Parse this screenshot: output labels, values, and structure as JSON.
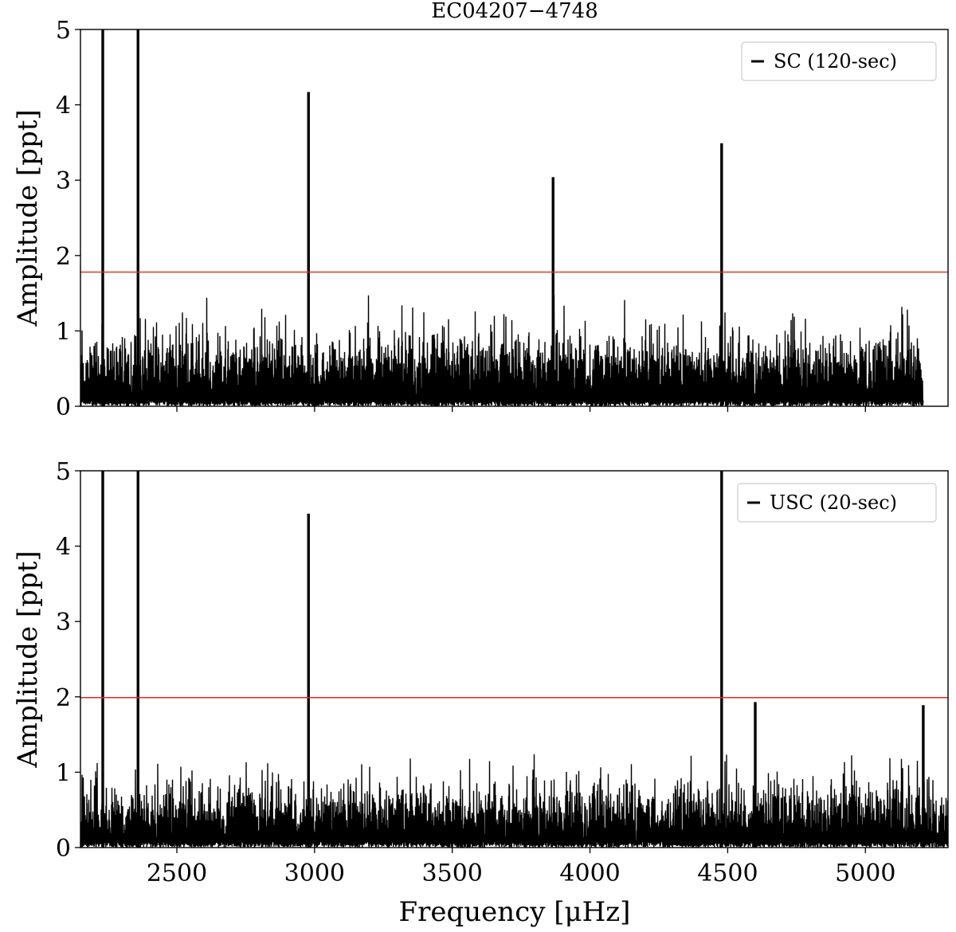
{
  "figure": {
    "title": "EC04207−4748",
    "xlabel": "Frequency [μHz]"
  },
  "chart_data": [
    {
      "type": "line",
      "legend": "SC (120-sec)",
      "legend_position": "top-right",
      "ylabel": "Amplitude [ppt]",
      "xlim": [
        2150,
        5300
      ],
      "ylim": [
        0,
        5
      ],
      "xticks": [
        2500,
        3000,
        3500,
        4000,
        4500,
        5000
      ],
      "yticks": [
        0,
        1,
        2,
        3,
        4,
        5
      ],
      "x_tick_labels_shown": false,
      "data_x_range": [
        2150,
        5210
      ],
      "noise_level": 1.0,
      "threshold": 1.78,
      "threshold_color": "#e8291c",
      "line_color": "#000000",
      "peaks": [
        {
          "x": 2231,
          "y": 5.0
        },
        {
          "x": 2359,
          "y": 5.0
        },
        {
          "x": 2978,
          "y": 4.17
        },
        {
          "x": 3866,
          "y": 3.04
        },
        {
          "x": 4478,
          "y": 3.49
        }
      ]
    },
    {
      "type": "line",
      "legend": "USC (20-sec)",
      "legend_position": "top-right",
      "ylabel": "Amplitude [ppt]",
      "xlim": [
        2150,
        5300
      ],
      "ylim": [
        0,
        5
      ],
      "xticks": [
        2500,
        3000,
        3500,
        4000,
        4500,
        5000
      ],
      "yticks": [
        0,
        1,
        2,
        3,
        4,
        5
      ],
      "x_tick_labels_shown": true,
      "data_x_range": [
        2150,
        5300
      ],
      "noise_level": 0.85,
      "threshold": 1.99,
      "threshold_color": "#e8291c",
      "line_color": "#000000",
      "peaks": [
        {
          "x": 2231,
          "y": 5.0
        },
        {
          "x": 2359,
          "y": 5.0
        },
        {
          "x": 2978,
          "y": 4.43
        },
        {
          "x": 4478,
          "y": 5.0
        },
        {
          "x": 4600,
          "y": 1.93
        },
        {
          "x": 5210,
          "y": 1.89
        }
      ]
    }
  ]
}
